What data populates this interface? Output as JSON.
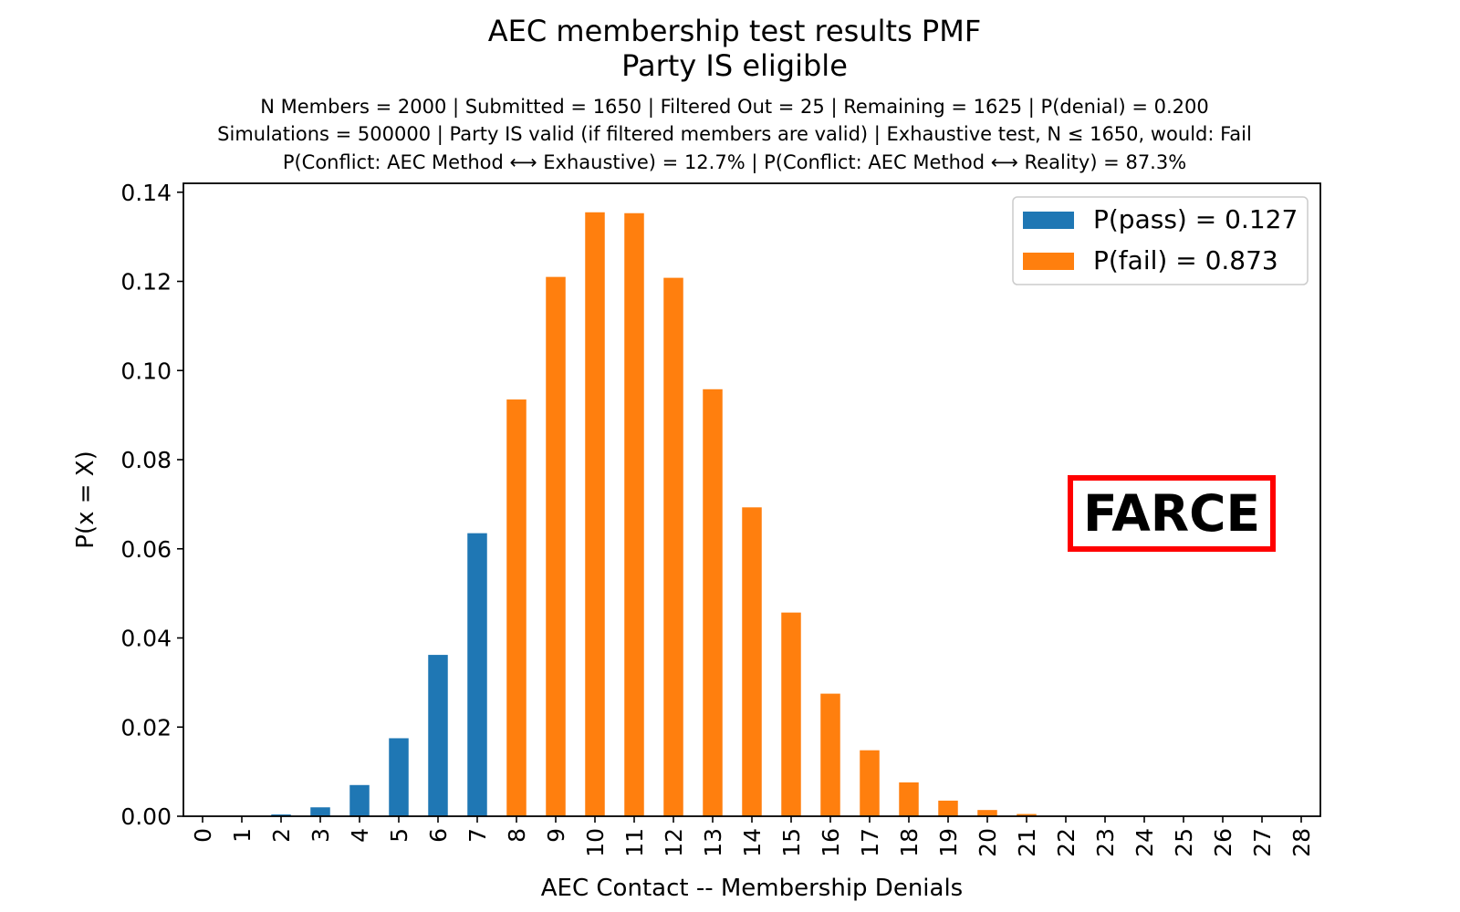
{
  "chart_data": {
    "type": "bar",
    "title": "AEC membership test results PMF",
    "subtitle": "Party IS eligible",
    "info_lines": [
      "N Members = 2000 | Submitted = 1650 | Filtered Out = 25 | Remaining = 1625 | P(denial) = 0.200",
      "Simulations = 500000 | Party IS valid (if filtered members are valid) | Exhaustive test, N ≤ 1650, would: Fail",
      "P(Conflict: AEC Method ⟷ Exhaustive) = 12.7% | P(Conflict: AEC Method ⟷ Reality) = 87.3%"
    ],
    "xlabel": "AEC Contact -- Membership Denials",
    "ylabel": "P(x = X)",
    "ylim": [
      0,
      0.142
    ],
    "yticks": [
      0,
      0.02,
      0.04,
      0.06,
      0.08,
      0.1,
      0.12,
      0.14
    ],
    "ytick_labels": [
      "0.00",
      "0.02",
      "0.04",
      "0.06",
      "0.08",
      "0.10",
      "0.12",
      "0.14"
    ],
    "categories": [
      "0",
      "1",
      "2",
      "3",
      "4",
      "5",
      "6",
      "7",
      "8",
      "9",
      "10",
      "11",
      "12",
      "13",
      "14",
      "15",
      "16",
      "17",
      "18",
      "19",
      "20",
      "21",
      "22",
      "23",
      "24",
      "25",
      "26",
      "27",
      "28"
    ],
    "series": [
      {
        "name": "P(pass) = 0.127",
        "color": "#1f77b4",
        "values": [
          0.0,
          0.0,
          0.0004,
          0.002,
          0.007,
          0.0175,
          0.0362,
          0.0635,
          null,
          null,
          null,
          null,
          null,
          null,
          null,
          null,
          null,
          null,
          null,
          null,
          null,
          null,
          null,
          null,
          null,
          null,
          null,
          null,
          null
        ]
      },
      {
        "name": "P(fail) = 0.873",
        "color": "#ff7f0e",
        "values": [
          null,
          null,
          null,
          null,
          null,
          null,
          null,
          null,
          0.0935,
          0.121,
          0.1355,
          0.1353,
          0.1208,
          0.0958,
          0.0693,
          0.0457,
          0.0275,
          0.0148,
          0.0076,
          0.0035,
          0.0014,
          0.0005,
          0.0,
          0.0,
          0.0,
          0.0,
          0.0,
          0.0,
          0.0
        ]
      }
    ],
    "legend_placement": "top-right",
    "grid": false,
    "annotation": {
      "text": "FARCE",
      "color": "#ff0000"
    }
  }
}
